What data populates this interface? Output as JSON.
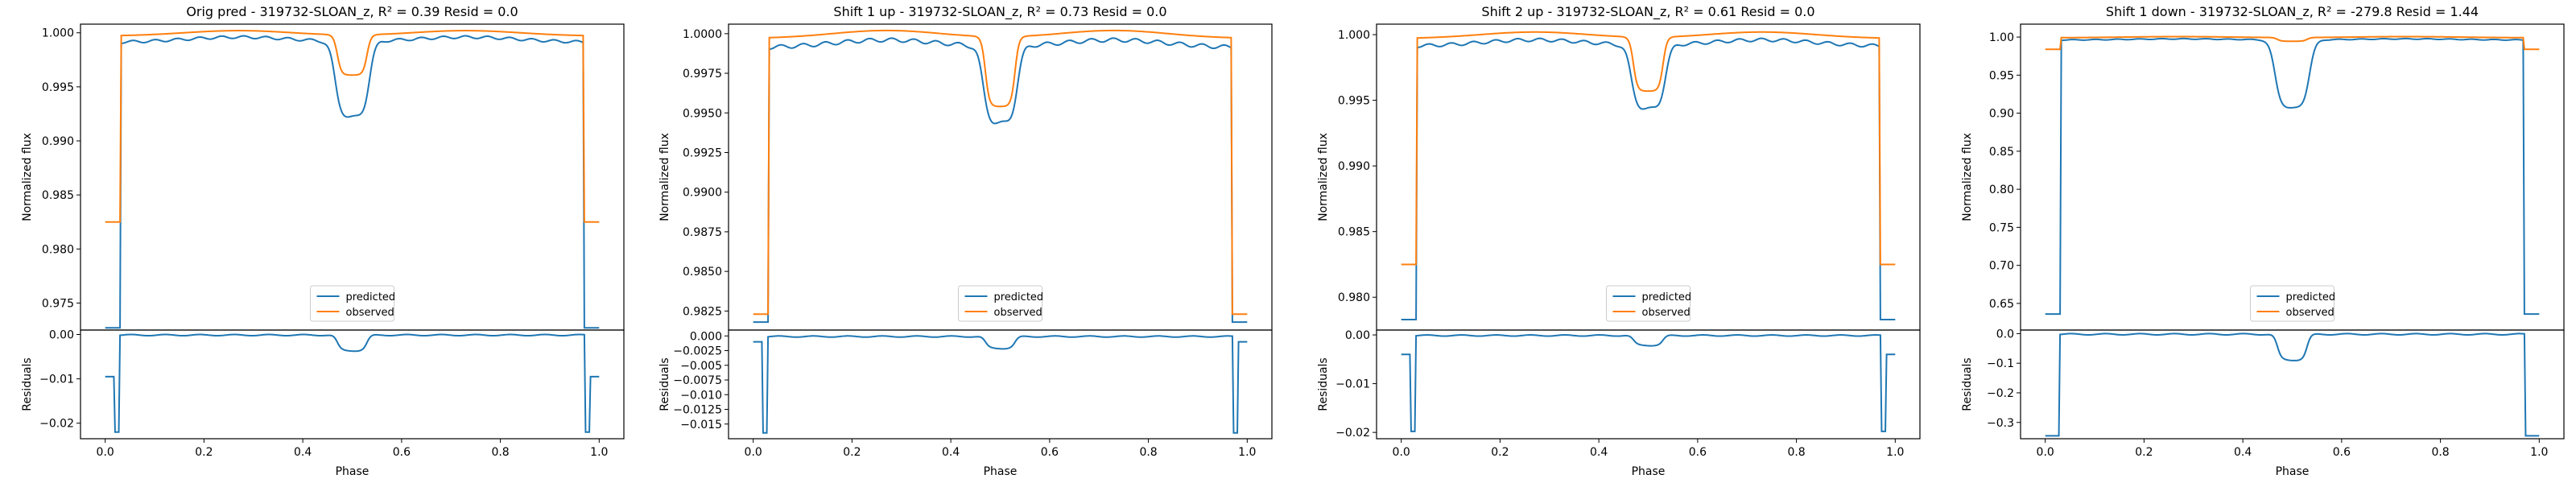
{
  "chart_data": [
    {
      "type": "line",
      "title": "Orig pred - 319732-SLOAN_z, R² = 0.39 Resid = 0.0",
      "ylabel": "Normalized flux",
      "xlim": [
        -0.05,
        1.05
      ],
      "ylim": [
        0.9725,
        1.0008
      ],
      "yticks": [
        0.975,
        0.98,
        0.985,
        0.99,
        0.995,
        1.0
      ],
      "ytick_labels": [
        "0.975",
        "0.980",
        "0.985",
        "0.990",
        "0.995",
        "1.000"
      ],
      "legend": {
        "position": "lower center",
        "entries": [
          "predicted",
          "observed"
        ]
      },
      "profile": {
        "wall_low": 0.9727,
        "obs_low": 0.9825,
        "eclipse_depth_pred": 0.9928,
        "eclipse_depth_obs": 0.9962
      },
      "residuals": {
        "ylabel": "Residuals",
        "xlabel": "Phase",
        "ylim": [
          -0.0235,
          0.001
        ],
        "yticks": [
          0.0,
          -0.01,
          -0.02
        ],
        "ytick_labels": [
          "0.00",
          "−0.01",
          "−0.02"
        ],
        "xticks": [
          0.0,
          0.2,
          0.4,
          0.6,
          0.8,
          1.0
        ],
        "xtick_labels": [
          "0.0",
          "0.2",
          "0.4",
          "0.6",
          "0.8",
          "1.0"
        ],
        "min": -0.022,
        "plateau": -0.0095,
        "eclipse": -0.0035
      }
    },
    {
      "type": "line",
      "title": "Shift 1 up - 319732-SLOAN_z, R² = 0.73 Resid = 0.0",
      "ylabel": "Normalized flux",
      "xlim": [
        -0.05,
        1.05
      ],
      "ylim": [
        0.9813,
        1.0006
      ],
      "yticks": [
        0.9825,
        0.985,
        0.9875,
        0.99,
        0.9925,
        0.995,
        0.9975,
        1.0
      ],
      "ytick_labels": [
        "0.9825",
        "0.9850",
        "0.9875",
        "0.9900",
        "0.9925",
        "0.9950",
        "0.9975",
        "1.0000"
      ],
      "legend": {
        "position": "lower center",
        "entries": [
          "predicted",
          "observed"
        ]
      },
      "profile": {
        "wall_low": 0.9818,
        "obs_low": 0.9823,
        "eclipse_depth_pred": 0.995,
        "eclipse_depth_obs": 0.9955
      },
      "residuals": {
        "ylabel": "Residuals",
        "xlabel": "Phase",
        "ylim": [
          -0.0175,
          0.001
        ],
        "yticks": [
          0.0,
          -0.0025,
          -0.005,
          -0.0075,
          -0.01,
          -0.0125,
          -0.015
        ],
        "ytick_labels": [
          "0.000",
          "−0.0025",
          "−0.005",
          "−0.0075",
          "−0.010",
          "−0.0125",
          "−0.015"
        ],
        "xticks": [
          0.0,
          0.2,
          0.4,
          0.6,
          0.8,
          1.0
        ],
        "xtick_labels": [
          "0.0",
          "0.2",
          "0.4",
          "0.6",
          "0.8",
          "1.0"
        ],
        "min": -0.0165,
        "plateau": -0.001,
        "eclipse": -0.002
      }
    },
    {
      "type": "line",
      "title": "Shift 2 up - 319732-SLOAN_z, R² = 0.61 Resid = 0.0",
      "ylabel": "Normalized flux",
      "xlim": [
        -0.05,
        1.05
      ],
      "ylim": [
        0.9775,
        1.0008
      ],
      "yticks": [
        0.98,
        0.985,
        0.99,
        0.995,
        1.0
      ],
      "ytick_labels": [
        "0.980",
        "0.985",
        "0.990",
        "0.995",
        "1.000"
      ],
      "legend": {
        "position": "lower center",
        "entries": [
          "predicted",
          "observed"
        ]
      },
      "profile": {
        "wall_low": 0.9783,
        "obs_low": 0.9825,
        "eclipse_depth_pred": 0.995,
        "eclipse_depth_obs": 0.9958
      },
      "residuals": {
        "ylabel": "Residuals",
        "xlabel": "Phase",
        "ylim": [
          -0.0213,
          0.001
        ],
        "yticks": [
          0.0,
          -0.01,
          -0.02
        ],
        "ytick_labels": [
          "0.00",
          "−0.01",
          "−0.02"
        ],
        "xticks": [
          0.0,
          0.2,
          0.4,
          0.6,
          0.8,
          1.0
        ],
        "xtick_labels": [
          "0.0",
          "0.2",
          "0.4",
          "0.6",
          "0.8",
          "1.0"
        ],
        "min": -0.0198,
        "plateau": -0.004,
        "eclipse": -0.002
      }
    },
    {
      "type": "line",
      "title": "Shift 1 down - 319732-SLOAN_z, R² = -279.8 Resid = 1.44",
      "ylabel": "Normalized flux",
      "xlim": [
        -0.05,
        1.05
      ],
      "ylim": [
        0.615,
        1.017
      ],
      "yticks": [
        0.65,
        0.7,
        0.75,
        0.8,
        0.85,
        0.9,
        0.95,
        1.0
      ],
      "ytick_labels": [
        "0.65",
        "0.70",
        "0.75",
        "0.80",
        "0.85",
        "0.90",
        "0.95",
        "1.00"
      ],
      "legend": {
        "position": "lower center",
        "entries": [
          "predicted",
          "observed"
        ]
      },
      "profile": {
        "wall_low": 0.636,
        "obs_low": 0.984,
        "eclipse_depth_pred": 0.908,
        "eclipse_depth_obs": 0.995
      },
      "residuals": {
        "ylabel": "Residuals",
        "xlabel": "Phase",
        "ylim": [
          -0.355,
          0.012
        ],
        "yticks": [
          0.0,
          -0.1,
          -0.2,
          -0.3
        ],
        "ytick_labels": [
          "0.0",
          "−0.1",
          "−0.2",
          "−0.3"
        ],
        "xticks": [
          0.0,
          0.2,
          0.4,
          0.6,
          0.8,
          1.0
        ],
        "xtick_labels": [
          "0.0",
          "0.2",
          "0.4",
          "0.6",
          "0.8",
          "1.0"
        ],
        "min": -0.345,
        "plateau": -0.345,
        "eclipse": -0.087
      }
    }
  ],
  "colors": {
    "predicted": "#1f77b4",
    "observed": "#ff7f0e"
  }
}
